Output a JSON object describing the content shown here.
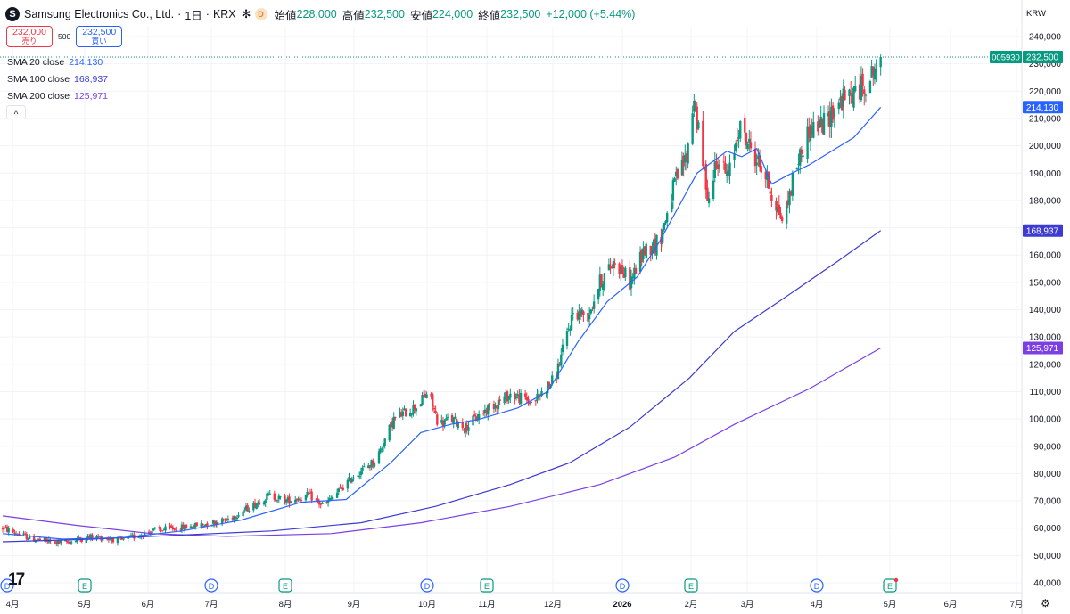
{
  "header": {
    "logo_letter": "S",
    "symbol_name": "Samsung Electronics Co., Ltd.",
    "interval": "1日",
    "exchange": "KRX",
    "sep": "·",
    "asterisk": "✻",
    "dividend_badge": "D",
    "ohlc": [
      {
        "label": "始値",
        "value": "228,000"
      },
      {
        "label": "高値",
        "value": "232,500"
      },
      {
        "label": "安値",
        "value": "224,000"
      },
      {
        "label": "終値",
        "value": "232,500"
      },
      {
        "label": "",
        "value": "+12,000 (+5.44%)"
      }
    ]
  },
  "trade": {
    "sell_price": "232,000",
    "sell_label": "売り",
    "spread": "500",
    "buy_price": "232,500",
    "buy_label": "買い"
  },
  "indicators": [
    {
      "name": "SMA 20 close",
      "value": "214,130",
      "color": "#2962ff"
    },
    {
      "name": "SMA 100 close",
      "value": "168,937",
      "color": "#3d3bd1"
    },
    {
      "name": "SMA 200 close",
      "value": "125,971",
      "color": "#7b3fe4"
    }
  ],
  "collapse_icon": "chevron-up-icon",
  "currency": "KRW",
  "colors": {
    "up": "#089981",
    "down": "#f23645",
    "sma20": "#2962ff",
    "sma100": "#3d3bd1",
    "sma200": "#7b3fe4",
    "grid": "#f0f3fa"
  },
  "chart_data": {
    "type": "candlestick",
    "y_axis": {
      "min": 40000,
      "max": 240000,
      "step": 10000,
      "tick_labels": [
        "40,000",
        "50,000",
        "60,000",
        "70,000",
        "80,000",
        "90,000",
        "100,000",
        "110,000",
        "120,000",
        "130,000",
        "140,000",
        "150,000",
        "160,000",
        "170,000",
        "180,000",
        "190,000",
        "200,000",
        "210,000",
        "220,000",
        "230,000",
        "240,000"
      ]
    },
    "x_axis": {
      "labels": [
        "4月",
        "5月",
        "6月",
        "7月",
        "8月",
        "9月",
        "10月",
        "11月",
        "12月",
        "2026",
        "2月",
        "3月",
        "4月",
        "5月",
        "6月",
        "7月"
      ]
    },
    "last_price": {
      "symbol": "005930",
      "value": 232500,
      "label": "232,500"
    },
    "sma_tags": [
      {
        "value": 214130,
        "label": "214,130"
      },
      {
        "value": 168937,
        "label": "168,937"
      },
      {
        "value": 125971,
        "label": "125,971"
      }
    ],
    "events": [
      {
        "type": "D",
        "month": 0
      },
      {
        "type": "E",
        "month": 1
      },
      {
        "type": "D",
        "month": 3
      },
      {
        "type": "E",
        "month": 4
      },
      {
        "type": "D",
        "month": 6
      },
      {
        "type": "E",
        "month": 7
      },
      {
        "type": "D",
        "month": 9
      },
      {
        "type": "E",
        "month": 10
      },
      {
        "type": "D",
        "month": 12
      },
      {
        "type": "E",
        "month": 13
      }
    ],
    "price_path": [
      [
        0,
        60000
      ],
      [
        20,
        56000
      ],
      [
        40,
        54500
      ],
      [
        60,
        57000
      ],
      [
        80,
        55500
      ],
      [
        100,
        59000
      ],
      [
        125,
        60500
      ],
      [
        150,
        63000
      ],
      [
        168,
        68500
      ],
      [
        178,
        72000
      ],
      [
        190,
        70000
      ],
      [
        205,
        72000
      ],
      [
        215,
        68000
      ],
      [
        235,
        79000
      ],
      [
        250,
        85000
      ],
      [
        262,
        100000
      ],
      [
        278,
        105000
      ],
      [
        285,
        110000
      ],
      [
        292,
        98000
      ],
      [
        300,
        100000
      ],
      [
        310,
        97000
      ],
      [
        325,
        104000
      ],
      [
        340,
        109000
      ],
      [
        355,
        106000
      ],
      [
        370,
        115000
      ],
      [
        382,
        139000
      ],
      [
        392,
        138000
      ],
      [
        400,
        150000
      ],
      [
        410,
        158000
      ],
      [
        420,
        150000
      ],
      [
        430,
        162000
      ],
      [
        440,
        165000
      ],
      [
        450,
        186000
      ],
      [
        458,
        196000
      ],
      [
        463,
        218000
      ],
      [
        468,
        196000
      ],
      [
        473,
        180000
      ],
      [
        478,
        196000
      ],
      [
        486,
        188000
      ],
      [
        493,
        207000
      ],
      [
        500,
        200000
      ],
      [
        510,
        190000
      ],
      [
        518,
        178000
      ],
      [
        523,
        172000
      ],
      [
        530,
        190000
      ],
      [
        540,
        206000
      ],
      [
        550,
        208000
      ],
      [
        560,
        216000
      ],
      [
        570,
        219000
      ],
      [
        580,
        224000
      ],
      [
        588,
        232500
      ]
    ],
    "sma20": [
      [
        0,
        58000
      ],
      [
        40,
        56000
      ],
      [
        80,
        56500
      ],
      [
        120,
        59000
      ],
      [
        160,
        63000
      ],
      [
        200,
        69500
      ],
      [
        230,
        70500
      ],
      [
        260,
        84000
      ],
      [
        280,
        95000
      ],
      [
        300,
        98000
      ],
      [
        320,
        100000
      ],
      [
        345,
        104000
      ],
      [
        365,
        110000
      ],
      [
        385,
        128000
      ],
      [
        405,
        143000
      ],
      [
        425,
        152000
      ],
      [
        440,
        165000
      ],
      [
        455,
        180000
      ],
      [
        465,
        190000
      ],
      [
        475,
        194000
      ],
      [
        485,
        198000
      ],
      [
        495,
        196000
      ],
      [
        505,
        199000
      ],
      [
        515,
        186000
      ],
      [
        525,
        189000
      ],
      [
        540,
        193000
      ],
      [
        555,
        198000
      ],
      [
        570,
        203000
      ],
      [
        588,
        214130
      ]
    ],
    "sma100": [
      [
        0,
        55000
      ],
      [
        60,
        56000
      ],
      [
        120,
        57500
      ],
      [
        180,
        59000
      ],
      [
        240,
        62000
      ],
      [
        290,
        68000
      ],
      [
        340,
        76000
      ],
      [
        380,
        84000
      ],
      [
        420,
        97000
      ],
      [
        460,
        115000
      ],
      [
        490,
        132000
      ],
      [
        520,
        143000
      ],
      [
        560,
        158000
      ],
      [
        588,
        168937
      ]
    ],
    "sma200": [
      [
        0,
        64500
      ],
      [
        50,
        61000
      ],
      [
        100,
        58000
      ],
      [
        150,
        57000
      ],
      [
        220,
        58000
      ],
      [
        280,
        62000
      ],
      [
        340,
        68000
      ],
      [
        400,
        76000
      ],
      [
        450,
        86000
      ],
      [
        490,
        98000
      ],
      [
        540,
        111000
      ],
      [
        588,
        125971
      ]
    ]
  }
}
